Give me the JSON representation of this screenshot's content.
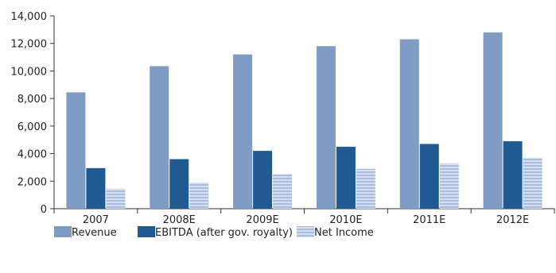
{
  "chart_data": {
    "type": "bar",
    "title": "",
    "xlabel": "",
    "ylabel": "",
    "categories": [
      "2007",
      "2008E",
      "2009E",
      "2010E",
      "2011E",
      "2012E"
    ],
    "ylim": [
      0,
      14000
    ],
    "yticks": [
      0,
      2000,
      4000,
      6000,
      8000,
      10000,
      12000,
      14000
    ],
    "ytick_labels": [
      "0",
      "2,000",
      "4,000",
      "6,000",
      "8,000",
      "10,000",
      "12,000",
      "14,000"
    ],
    "grid": false,
    "legend_position": "bottom-left",
    "series": [
      {
        "name": "Revenue",
        "color": "#7f9cc4",
        "pattern": "solid",
        "values": [
          8450,
          10350,
          11200,
          11800,
          12300,
          12800
        ]
      },
      {
        "name": "EBITDA (after gov. royalty)",
        "color": "#1f5b92",
        "pattern": "solid",
        "values": [
          2950,
          3600,
          4200,
          4500,
          4700,
          4900
        ]
      },
      {
        "name": "Net Income",
        "color": "#b7c6e0",
        "pattern": "horizontal-stripes",
        "values": [
          1450,
          1900,
          2500,
          2900,
          3300,
          3700
        ]
      }
    ]
  }
}
